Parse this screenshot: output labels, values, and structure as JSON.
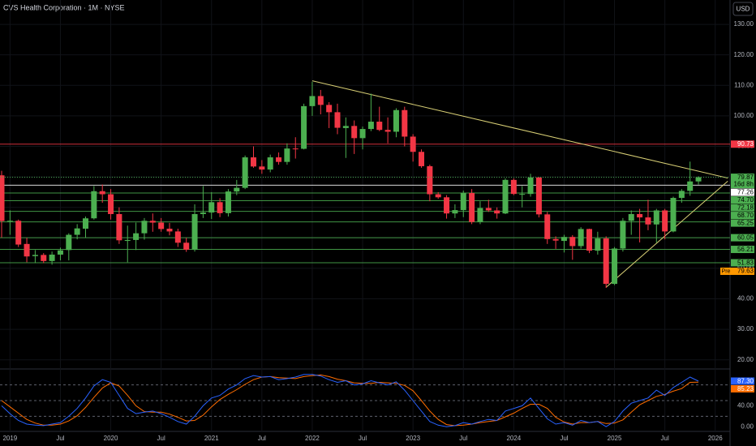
{
  "chart_data": {
    "type": "candlestick",
    "title": "CVS Health Corporation · 1M · NYSE",
    "currency": "USD",
    "categories": [
      null,
      "2019",
      null,
      null,
      null,
      null,
      null,
      "Jul",
      null,
      null,
      null,
      null,
      null,
      "2020",
      null,
      null,
      null,
      null,
      null,
      "Jul",
      null,
      null,
      null,
      null,
      null,
      "2021",
      null,
      null,
      null,
      null,
      null,
      "Jul",
      null,
      null,
      null,
      null,
      null,
      "2022",
      null,
      null,
      null,
      null,
      null,
      "Jul",
      null,
      null,
      null,
      null,
      null,
      "2023",
      null,
      null,
      null,
      null,
      null,
      "Jul",
      null,
      null,
      null,
      null,
      null,
      "2024",
      null,
      null,
      null,
      null,
      null,
      "Jul",
      null,
      null,
      null,
      null,
      null,
      "2025",
      null,
      null,
      null,
      null,
      null,
      "Jul",
      null,
      null,
      null,
      null,
      null,
      "2026"
    ],
    "open": [
      80.5,
      65.5,
      65.6,
      58,
      54,
      54.4,
      52.4,
      54.5,
      56,
      61,
      63,
      66.4,
      75.3,
      74.3,
      67.8,
      59,
      59.3,
      61.5,
      65.6,
      65,
      63,
      62.1,
      58.4,
      56.1,
      67.8,
      68.3,
      71.7,
      68.1,
      75.2,
      76.4,
      86.4,
      83.4,
      82.4,
      86.4,
      84.9,
      89.3,
      89.2,
      103.2,
      106.5,
      103.6,
      101.2,
      96,
      96.7,
      92.7,
      95.7,
      98.1,
      95.4,
      94.8,
      101.9,
      93.2,
      88.2,
      83.5,
      74.3,
      73.3,
      68,
      69.1,
      74.7,
      65.2,
      69.8,
      69,
      68,
      79,
      74.4,
      74.4,
      79.8,
      67.7,
      59.6,
      59,
      60.3,
      57.3,
      62.9,
      55.8,
      59.8,
      44.9,
      56.5,
      65.6,
      67.8,
      66.7,
      64.4,
      69,
      62.1,
      73.1,
      75.4,
      78.5,
      null,
      null
    ],
    "high": [
      82,
      69,
      66,
      60,
      56,
      55,
      55.5,
      56.8,
      61.5,
      64.5,
      67,
      77,
      77.5,
      76,
      70,
      64,
      65,
      66.5,
      68,
      66.5,
      64.9,
      63,
      60,
      71,
      77,
      75,
      73,
      76,
      79,
      87,
      90,
      85.5,
      87.3,
      88,
      91,
      93,
      104,
      111.2,
      108.5,
      104.5,
      104,
      99.5,
      98.5,
      96.5,
      107.3,
      103,
      99.5,
      102.5,
      103,
      94,
      89,
      84,
      75,
      74,
      71,
      75.5,
      76,
      72,
      72.5,
      70,
      79.5,
      79.5,
      77,
      81,
      79.9,
      68.5,
      60.5,
      61,
      60.9,
      63.5,
      63,
      62,
      60.5,
      57,
      66.5,
      69,
      69.5,
      72.5,
      69.5,
      69.5,
      73.5,
      76,
      85,
      80.2,
      null,
      null
    ],
    "low": [
      60.1,
      61,
      57,
      52,
      51.7,
      51.7,
      51.2,
      52.6,
      52.6,
      59.5,
      60,
      66,
      71.5,
      66,
      58,
      52,
      56,
      59.4,
      62,
      62,
      60.8,
      57,
      55.4,
      55.5,
      66.5,
      66.2,
      66.8,
      67,
      74,
      76,
      83,
      81,
      81.5,
      84,
      84,
      86,
      89,
      100,
      100.5,
      96,
      94,
      86.2,
      87.5,
      89,
      95,
      95,
      91,
      93,
      90,
      85,
      83,
      72,
      72.8,
      66.3,
      66.5,
      66.8,
      64.5,
      64.5,
      68.5,
      66.3,
      67.8,
      74,
      70,
      73.5,
      66.7,
      58,
      56.4,
      55.2,
      52.8,
      56.5,
      55,
      54.5,
      43.6,
      44.5,
      55.5,
      61,
      58.5,
      62.5,
      58.4,
      59.5,
      61.8,
      71.5,
      73.8,
      77.5,
      null,
      null
    ],
    "close": [
      65.5,
      65.6,
      57.8,
      53.9,
      54.4,
      52.4,
      54.5,
      55.9,
      61,
      63.1,
      66.4,
      75.3,
      74.3,
      67.8,
      59.2,
      59.3,
      61.5,
      65.6,
      65,
      62.9,
      62.1,
      58.4,
      56.1,
      67.8,
      68.3,
      71.7,
      68.1,
      75.2,
      76.4,
      86.4,
      83.4,
      82.4,
      86.4,
      84.9,
      89.3,
      89.2,
      103.2,
      106.5,
      103.6,
      101.2,
      96.1,
      96.7,
      92.7,
      95.7,
      98.1,
      95.4,
      94.8,
      101.9,
      93.2,
      88.2,
      83.5,
      74.3,
      73.3,
      68,
      69.1,
      74.7,
      65.2,
      69.8,
      69,
      68,
      79,
      74.4,
      74.4,
      79.8,
      67.7,
      59.6,
      59.1,
      60.3,
      57.3,
      62.9,
      55.8,
      59.8,
      44.9,
      56.5,
      65.6,
      67.8,
      66.7,
      64.4,
      69,
      62.1,
      73.1,
      75.4,
      78.5,
      79.87,
      null,
      null
    ],
    "up_color": "#4caf50",
    "down_color": "#f23645",
    "ylim": [
      17,
      138
    ],
    "yticks": [
      {
        "value": 20,
        "label": "20.00"
      },
      {
        "value": 30,
        "label": "30.00"
      },
      {
        "value": 40,
        "label": "40.00"
      },
      {
        "value": 50,
        "label": "50.00"
      },
      {
        "value": 60,
        "label": "60.00"
      },
      {
        "value": 70,
        "label": "70.00"
      },
      {
        "value": 80,
        "label": "80.00"
      },
      {
        "value": 90,
        "label": "90.00"
      },
      {
        "value": 100,
        "label": "100.00"
      },
      {
        "value": 110,
        "label": "110.00"
      },
      {
        "value": 120,
        "label": "120.00"
      },
      {
        "value": 130,
        "label": "130.00"
      }
    ],
    "levels": [
      {
        "value": 90.73,
        "color": "#f23645"
      },
      {
        "value": 77.26,
        "color": "#ffffff"
      },
      {
        "value": 74.7,
        "label": "74.70",
        "color": "#4caf50"
      },
      {
        "value": 72.18,
        "color": "#4caf50"
      },
      {
        "value": 68.7,
        "label": "68.70",
        "color": "#4caf50"
      },
      {
        "value": 65.25,
        "color": "#4caf50"
      },
      {
        "value": 60.05,
        "color": "#4caf50"
      },
      {
        "value": 56.21,
        "color": "#4caf50"
      },
      {
        "value": 51.83,
        "color": "#4caf50"
      }
    ],
    "countdown": "16d 8h",
    "premarket": {
      "label": "Pre",
      "value": 79.63,
      "color": "#ff9800"
    },
    "trendlines": [
      {
        "color": "#d8cf75",
        "points": [
          [
            37,
            111.5
          ],
          [
            86.5,
            79.6
          ]
        ]
      },
      {
        "color": "#d8cf75",
        "points": [
          [
            72,
            43.8
          ],
          [
            86.5,
            78.6
          ]
        ]
      }
    ],
    "indicator": {
      "ylim": [
        -9,
        109
      ],
      "yticks": [
        {
          "value": 0,
          "label": "0.00"
        },
        {
          "value": 40,
          "label": "40.00"
        }
      ],
      "bands": [
        20,
        50,
        80
      ],
      "series": [
        {
          "color": "#2962ff",
          "values": [
            40,
            25,
            12,
            5,
            3,
            2,
            5,
            8,
            20,
            35,
            55,
            78,
            90,
            85,
            60,
            35,
            25,
            28,
            30,
            25,
            18,
            10,
            5,
            20,
            40,
            55,
            60,
            72,
            80,
            92,
            98,
            95,
            96,
            90,
            92,
            95,
            100,
            100,
            97,
            90,
            85,
            88,
            80,
            82,
            88,
            84,
            80,
            86,
            70,
            50,
            30,
            10,
            3,
            0,
            2,
            8,
            5,
            10,
            14,
            12,
            30,
            35,
            40,
            55,
            35,
            15,
            5,
            8,
            3,
            12,
            8,
            10,
            0,
            10,
            30,
            45,
            50,
            55,
            70,
            60,
            75,
            85,
            95,
            {
              "value": 87.3,
              "label": "87.30"
            },
            null,
            null
          ]
        },
        {
          "color": "#ff6d00",
          "values": [
            50,
            38,
            26,
            14,
            7,
            3,
            3,
            5,
            11,
            21,
            37,
            56,
            74,
            84,
            78,
            60,
            40,
            29,
            28,
            28,
            24,
            18,
            11,
            12,
            22,
            38,
            52,
            62,
            71,
            81,
            90,
            95,
            96,
            94,
            93,
            92,
            96,
            98,
            99,
            96,
            91,
            88,
            84,
            83,
            83,
            85,
            84,
            83,
            79,
            69,
            50,
            30,
            14,
            4,
            2,
            3,
            5,
            8,
            10,
            12,
            19,
            26,
            35,
            43,
            43,
            35,
            18,
            9,
            5,
            8,
            8,
            10,
            6,
            7,
            13,
            28,
            42,
            50,
            58,
            62,
            68,
            73,
            85,
            85.23,
            null,
            null
          ]
        }
      ]
    }
  }
}
